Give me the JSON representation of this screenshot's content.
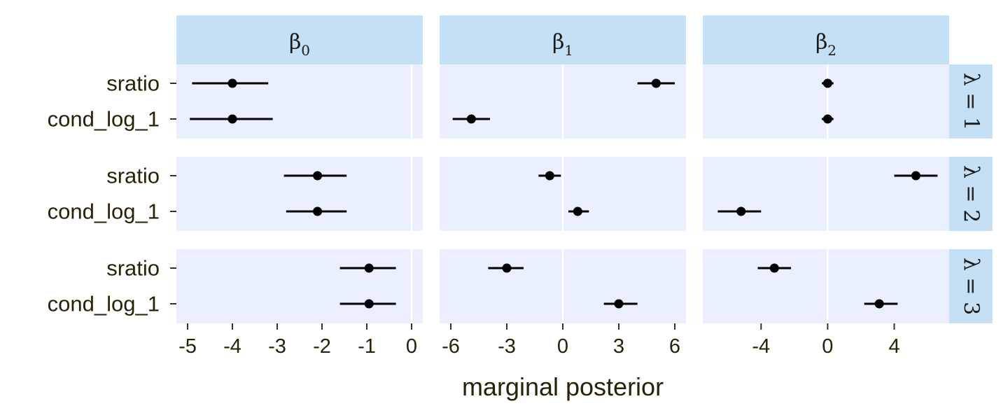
{
  "colors": {
    "panel_bg": "#e9efff",
    "strip_bg": "#c5dff5",
    "gridline": "#ffffff",
    "point": "#000000",
    "text": "#2b2008"
  },
  "chart_data": {
    "type": "pointrange-facet",
    "xlabel": "marginal posterior",
    "categories": [
      "sratio",
      "cond_log_1"
    ],
    "columns": [
      {
        "symbol": "β",
        "subscript": "0",
        "xlim": [
          -5.25,
          0.25
        ],
        "ticks": [
          -5,
          -4,
          -3,
          -2,
          -1,
          0
        ],
        "tick_labels": [
          "-5",
          "-4",
          "-3",
          "-2",
          "-1",
          "0"
        ]
      },
      {
        "symbol": "β",
        "subscript": "1",
        "xlim": [
          -6.6,
          6.6
        ],
        "ticks": [
          -6,
          -3,
          0,
          3,
          6
        ],
        "tick_labels": [
          "-6",
          "-3",
          "0",
          "3",
          "6"
        ]
      },
      {
        "symbol": "β",
        "subscript": "2",
        "xlim": [
          -7.5,
          7.3
        ],
        "ticks": [
          -4,
          0,
          4
        ],
        "tick_labels": [
          "-4",
          "0",
          "4"
        ]
      }
    ],
    "rows": [
      {
        "label": "λ = 1",
        "cells": [
          [
            {
              "category": "sratio",
              "estimate": -4.0,
              "lower": -4.9,
              "upper": -3.2
            },
            {
              "category": "cond_log_1",
              "estimate": -4.0,
              "lower": -4.95,
              "upper": -3.1
            }
          ],
          [
            {
              "category": "sratio",
              "estimate": 5.0,
              "lower": 4.0,
              "upper": 6.0
            },
            {
              "category": "cond_log_1",
              "estimate": -4.9,
              "lower": -5.9,
              "upper": -3.9
            }
          ],
          [
            {
              "category": "sratio",
              "estimate": 0.0,
              "lower": -0.35,
              "upper": 0.35
            },
            {
              "category": "cond_log_1",
              "estimate": 0.0,
              "lower": -0.35,
              "upper": 0.35
            }
          ]
        ]
      },
      {
        "label": "λ = 2",
        "cells": [
          [
            {
              "category": "sratio",
              "estimate": -2.1,
              "lower": -2.85,
              "upper": -1.45
            },
            {
              "category": "cond_log_1",
              "estimate": -2.1,
              "lower": -2.8,
              "upper": -1.45
            }
          ],
          [
            {
              "category": "sratio",
              "estimate": -0.7,
              "lower": -1.3,
              "upper": -0.1
            },
            {
              "category": "cond_log_1",
              "estimate": 0.8,
              "lower": 0.3,
              "upper": 1.4
            }
          ],
          [
            {
              "category": "sratio",
              "estimate": 5.3,
              "lower": 4.0,
              "upper": 6.6
            },
            {
              "category": "cond_log_1",
              "estimate": -5.2,
              "lower": -6.6,
              "upper": -4.0
            }
          ]
        ]
      },
      {
        "label": "λ = 3",
        "cells": [
          [
            {
              "category": "sratio",
              "estimate": -0.95,
              "lower": -1.6,
              "upper": -0.35
            },
            {
              "category": "cond_log_1",
              "estimate": -0.95,
              "lower": -1.6,
              "upper": -0.35
            }
          ],
          [
            {
              "category": "sratio",
              "estimate": -3.0,
              "lower": -4.0,
              "upper": -2.1
            },
            {
              "category": "cond_log_1",
              "estimate": 3.0,
              "lower": 2.2,
              "upper": 4.0
            }
          ],
          [
            {
              "category": "sratio",
              "estimate": -3.2,
              "lower": -4.2,
              "upper": -2.2
            },
            {
              "category": "cond_log_1",
              "estimate": 3.1,
              "lower": 2.2,
              "upper": 4.2
            }
          ]
        ]
      }
    ]
  }
}
